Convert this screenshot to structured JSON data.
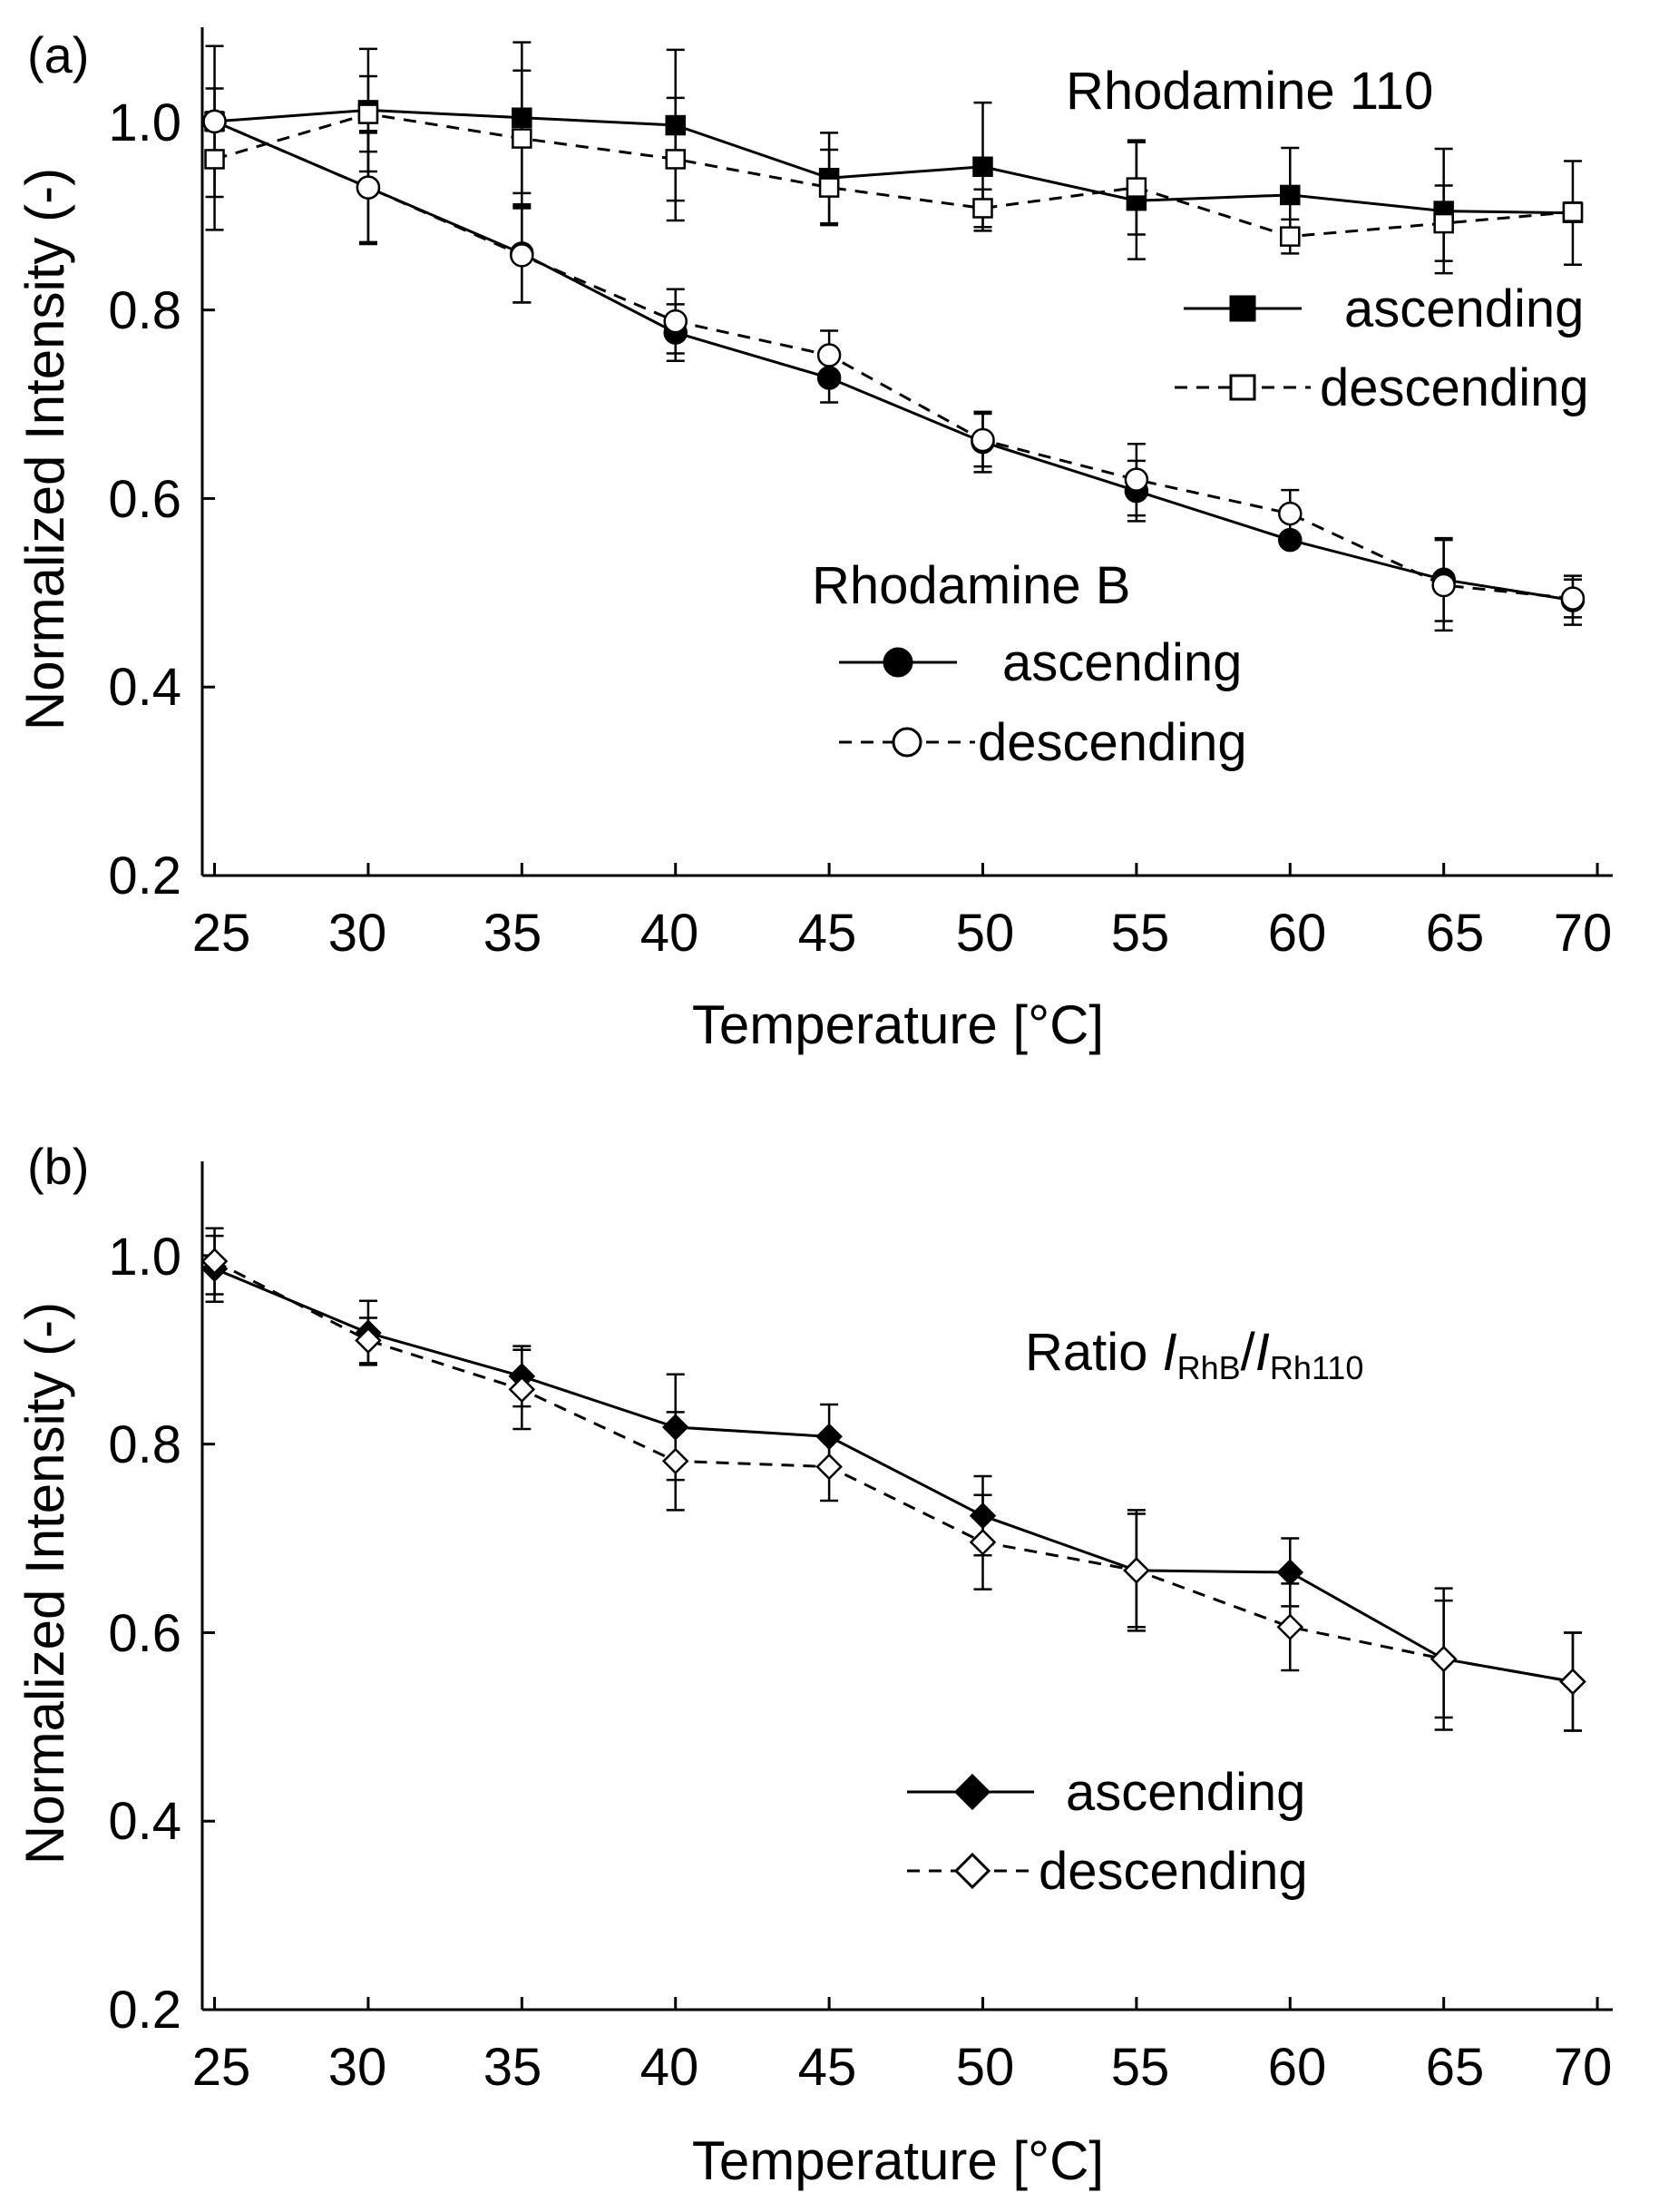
{
  "chart_data": [
    {
      "type": "line",
      "panel_label": "(a)",
      "xlabel": "Temperature [°C]",
      "ylabel": "Normalized Intensity (-)",
      "xlim": [
        24.6,
        70.5
      ],
      "ylim": [
        0.2,
        1.1
      ],
      "x_ticks": [
        25,
        30,
        35,
        40,
        45,
        50,
        55,
        60,
        65,
        70
      ],
      "y_ticks": [
        0.2,
        0.4,
        0.6,
        0.8,
        1.0
      ],
      "x_tick_labels": [
        "25",
        "30",
        "35",
        "40",
        "45",
        "50",
        "55",
        "60",
        "65",
        "70"
      ],
      "y_tick_labels": [
        "0.2",
        "0.4",
        "0.6",
        "0.8",
        "1.0"
      ],
      "groups": [
        {
          "title": "Rhodamine 110"
        },
        {
          "title": "Rhodamine B"
        }
      ],
      "series": [
        {
          "name": "ascending",
          "group": "Rhodamine 110",
          "marker": "square",
          "filled": true,
          "dashed": false,
          "x": [
            25,
            30,
            35,
            40,
            45,
            50,
            55,
            60,
            65,
            69.2
          ],
          "y": [
            1.0,
            1.012,
            1.004,
            0.996,
            0.94,
            0.952,
            0.916,
            0.922,
            0.905,
            0.903
          ],
          "err": [
            0.08,
            0.065,
            0.08,
            0.08,
            0.048,
            0.068,
            0.062,
            0.05,
            0.066,
            0.055
          ]
        },
        {
          "name": "descending",
          "group": "Rhodamine 110",
          "marker": "square",
          "filled": false,
          "dashed": true,
          "x": [
            25,
            30,
            35,
            40,
            45,
            50,
            55,
            60,
            65,
            69.2
          ],
          "y": [
            0.96,
            1.008,
            0.982,
            0.96,
            0.93,
            0.908,
            0.93,
            0.878,
            0.892,
            0.904
          ],
          "err": [
            0.075,
            0.04,
            0.072,
            0.065,
            0.04,
            0.02,
            0.05,
            0.018,
            0.04,
            0.01
          ]
        },
        {
          "name": "ascending",
          "group": "Rhodamine B",
          "marker": "circle",
          "filled": true,
          "dashed": false,
          "x": [
            25,
            30,
            35,
            40,
            45,
            50,
            55,
            60,
            65,
            69.2
          ],
          "y": [
            1.0,
            0.93,
            0.86,
            0.776,
            0.728,
            0.66,
            0.608,
            0.556,
            0.514,
            0.492
          ],
          "err": [
            0.01,
            0.06,
            0.052,
            0.03,
            0.026,
            0.032,
            0.032,
            0.006,
            0.044,
            0.026
          ]
        },
        {
          "name": "descending",
          "group": "Rhodamine B",
          "marker": "circle",
          "filled": false,
          "dashed": true,
          "x": [
            25,
            30,
            35,
            40,
            45,
            50,
            55,
            60,
            65,
            69.2
          ],
          "y": [
            1.0,
            0.93,
            0.858,
            0.788,
            0.752,
            0.662,
            0.62,
            0.584,
            0.508,
            0.494
          ],
          "err": [
            0.01,
            0.058,
            0.05,
            0.034,
            0.026,
            0.028,
            0.038,
            0.025,
            0.048,
            0.02
          ]
        }
      ]
    },
    {
      "type": "line",
      "panel_label": "(b)",
      "xlabel": "Temperature [°C]",
      "ylabel": "Normalized Intensity (-)",
      "xlim": [
        24.6,
        70.5
      ],
      "ylim": [
        0.2,
        1.1
      ],
      "x_ticks": [
        25,
        30,
        35,
        40,
        45,
        50,
        55,
        60,
        65,
        70
      ],
      "y_ticks": [
        0.2,
        0.4,
        0.6,
        0.8,
        1.0
      ],
      "x_tick_labels": [
        "25",
        "30",
        "35",
        "40",
        "45",
        "50",
        "55",
        "60",
        "65",
        "70"
      ],
      "y_tick_labels": [
        "0.2",
        "0.4",
        "0.6",
        "0.8",
        "1.0"
      ],
      "annotation": {
        "prefix": "Ratio ",
        "num": "I",
        "num_sub": "RhB",
        "sep": "/",
        "den": "I",
        "den_sub": "Rh110"
      },
      "series": [
        {
          "name": "ascending",
          "marker": "diamond",
          "filled": true,
          "dashed": false,
          "x": [
            25,
            30,
            35,
            40,
            45,
            50,
            55,
            60,
            65,
            69.2
          ],
          "y": [
            0.986,
            0.918,
            0.872,
            0.818,
            0.808,
            0.724,
            0.666,
            0.664,
            0.572,
            0.548
          ],
          "err": [
            0.035,
            0.034,
            0.032,
            0.056,
            0.034,
            0.042,
            0.064,
            0.036,
            0.075,
            0.052
          ]
        },
        {
          "name": "descending",
          "marker": "diamond",
          "filled": false,
          "dashed": true,
          "x": [
            25,
            30,
            35,
            40,
            45,
            50,
            55,
            60,
            65,
            69.2
          ],
          "y": [
            0.994,
            0.91,
            0.858,
            0.782,
            0.776,
            0.696,
            0.666,
            0.606,
            0.572,
            0.548
          ],
          "err": [
            0.035,
            0.024,
            0.042,
            0.052,
            0.036,
            0.05,
            0.06,
            0.046,
            0.062,
            0.052
          ]
        }
      ]
    }
  ]
}
